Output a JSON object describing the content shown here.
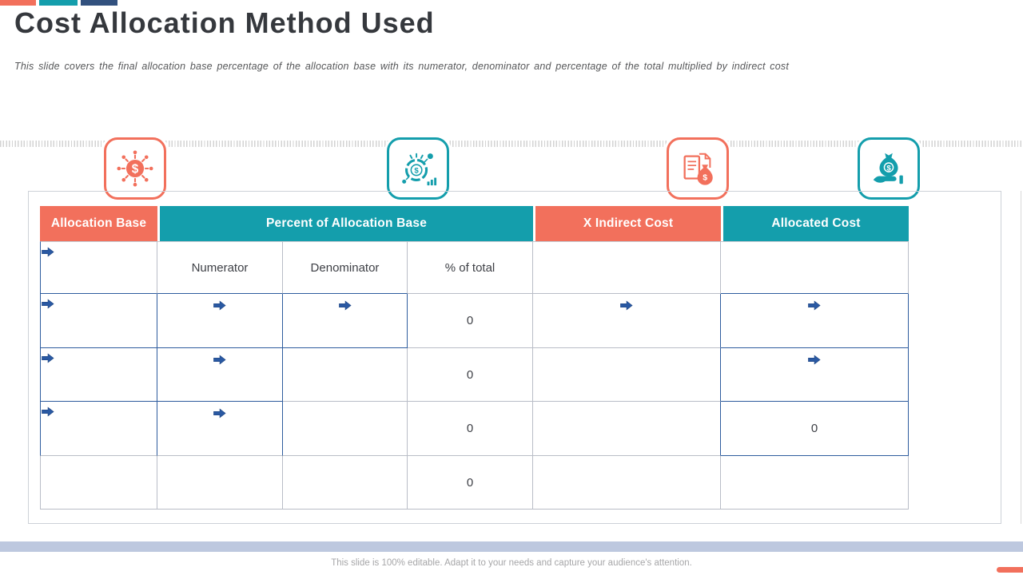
{
  "colors": {
    "orange": "#F2705C",
    "teal": "#149EAC",
    "navy": "#32517E",
    "arrow": "#2A59A3",
    "blue-border": "#2E5C9E",
    "gray-border": "#B9BDC7",
    "highlight": "#E0E4F1",
    "footer-bar": "#BDC8DF",
    "footer-text": "#A6A6A8",
    "title-text": "#35383D",
    "body-text": "#3E4046",
    "subtitle-text": "#57585A"
  },
  "slide": {
    "title": "Cost Allocation Method Used",
    "subtitle": "This slide covers the final allocation base percentage of the allocation base with its numerator, denominator and percentage of the total multiplied by indirect cost",
    "footer_note": "This slide is 100% editable. Adapt it to your needs and capture your audience's attention."
  },
  "icons": [
    {
      "name": "dollar-network-icon",
      "color": "#F2705C"
    },
    {
      "name": "dollar-chart-gauge-icon",
      "color": "#149EAC"
    },
    {
      "name": "invoice-moneybag-icon",
      "color": "#F2705C"
    },
    {
      "name": "hand-moneybag-icon",
      "color": "#149EAC"
    }
  ],
  "table": {
    "headers": [
      {
        "label": "Allocation Base"
      },
      {
        "label": "Percent of Allocation Base"
      },
      {
        "label": "X Indirect Cost"
      },
      {
        "label": "Allocated Cost"
      }
    ],
    "rows": [
      {
        "cells": [
          {
            "type": "arrow-left"
          },
          {
            "type": "label",
            "value": "Numerator"
          },
          {
            "type": "label",
            "value": "Denominator"
          },
          {
            "type": "label",
            "value": "% of total"
          },
          {
            "type": "empty"
          },
          {
            "type": "empty"
          }
        ]
      },
      {
        "cells": [
          {
            "type": "arrow-left"
          },
          {
            "type": "arrow"
          },
          {
            "type": "arrow"
          },
          {
            "type": "value",
            "value": "0"
          },
          {
            "type": "arrow"
          },
          {
            "type": "arrow",
            "highlight": true
          }
        ]
      },
      {
        "cells": [
          {
            "type": "arrow-left"
          },
          {
            "type": "arrow"
          },
          {
            "type": "empty"
          },
          {
            "type": "value",
            "value": "0"
          },
          {
            "type": "empty"
          },
          {
            "type": "arrow",
            "highlight": true
          }
        ]
      },
      {
        "cells": [
          {
            "type": "arrow-left"
          },
          {
            "type": "arrow"
          },
          {
            "type": "empty"
          },
          {
            "type": "value",
            "value": "0"
          },
          {
            "type": "empty"
          },
          {
            "type": "value",
            "value": "0",
            "highlight": true
          }
        ]
      },
      {
        "cells": [
          {
            "type": "empty"
          },
          {
            "type": "empty"
          },
          {
            "type": "empty"
          },
          {
            "type": "value",
            "value": "0"
          },
          {
            "type": "empty"
          },
          {
            "type": "empty"
          }
        ]
      }
    ]
  }
}
